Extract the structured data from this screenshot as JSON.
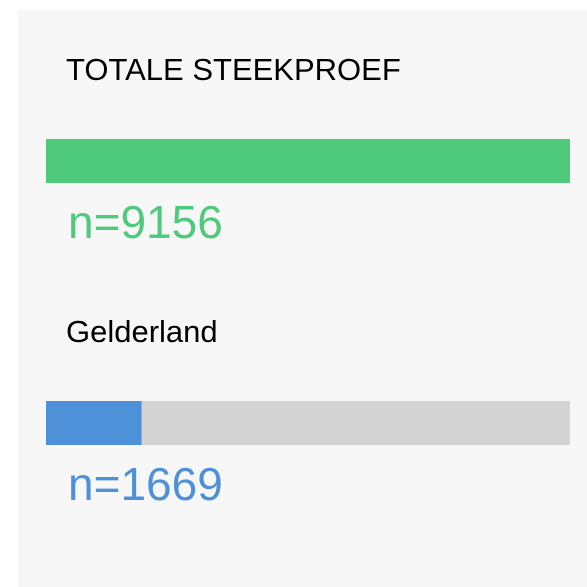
{
  "chart_data": {
    "type": "progress",
    "categories": [
      "TOTALE STEEKPROEF",
      "Gelderland"
    ],
    "values": [
      9156,
      1669
    ],
    "value_labels": [
      "n=9156",
      "n=1669"
    ],
    "colors": [
      "#4fc97b",
      "#4f91d9"
    ],
    "track_color": "#d3d3d3"
  }
}
